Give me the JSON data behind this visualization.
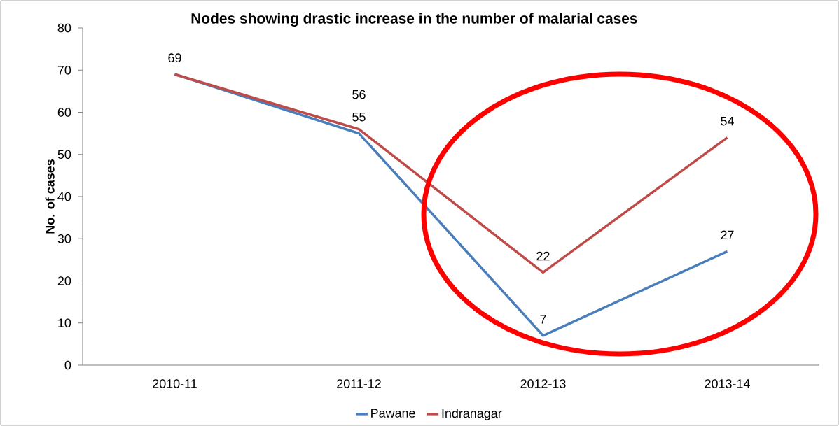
{
  "chart_data": {
    "type": "line",
    "title": "Nodes showing drastic increase in the number of malarial cases",
    "ylabel": "No. of cases",
    "categories": [
      "2010-11",
      "2011-12",
      "2012-13",
      "2013-14"
    ],
    "series": [
      {
        "name": "Pawane",
        "color": "#4a7ebb",
        "values": [
          69,
          55,
          7,
          27
        ],
        "value_labels": [
          "69",
          "55",
          "7",
          "27"
        ]
      },
      {
        "name": "Indranagar",
        "color": "#be4b48",
        "values": [
          69,
          56,
          22,
          54
        ],
        "value_labels": [
          null,
          "56",
          "22",
          "54"
        ]
      }
    ],
    "ylim": [
      0,
      80
    ],
    "yticks": [
      0,
      10,
      20,
      30,
      40,
      50,
      60,
      70,
      80
    ],
    "legend": "bottom",
    "grid": false,
    "marker": "none",
    "line_style": "solid"
  }
}
